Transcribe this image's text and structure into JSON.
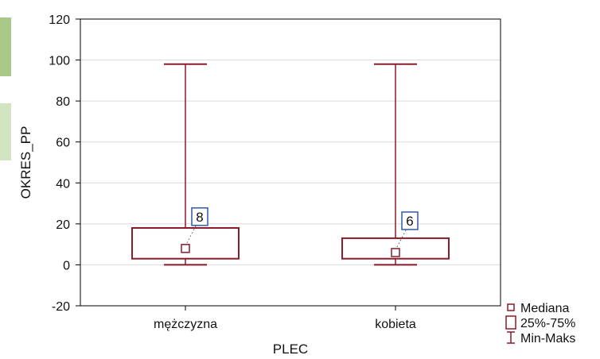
{
  "chart_data": {
    "type": "boxplot",
    "xlabel": "PLEC",
    "ylabel": "OKRES_PP",
    "ylim": [
      -20,
      120
    ],
    "yticks": [
      "-20",
      "0",
      "20",
      "40",
      "60",
      "80",
      "100",
      "120"
    ],
    "grid": true,
    "legend_position": "bottom-right",
    "categories": [
      "mężczyzna",
      "kobieta"
    ],
    "groups": [
      {
        "category": "mężczyzna",
        "min": 0,
        "q1": 3,
        "median": 8,
        "q3": 18,
        "max": 98,
        "median_label": "8"
      },
      {
        "category": "kobieta",
        "min": 0,
        "q1": 3,
        "median": 6,
        "q3": 13,
        "max": 98,
        "median_label": "6"
      }
    ],
    "legend": [
      {
        "name": "Mediana",
        "symbol": "median"
      },
      {
        "name": "25%-75%",
        "symbol": "box"
      },
      {
        "name": "Min-Maks",
        "symbol": "whisker"
      }
    ]
  },
  "colors": {
    "box": "#8b1a2b",
    "annotation_border": "#2e5aa8",
    "grid": "#d9d9d9",
    "frame": "#000000",
    "side_bar_1": "#a9c98a",
    "side_bar_2": "#d3e4c3"
  }
}
